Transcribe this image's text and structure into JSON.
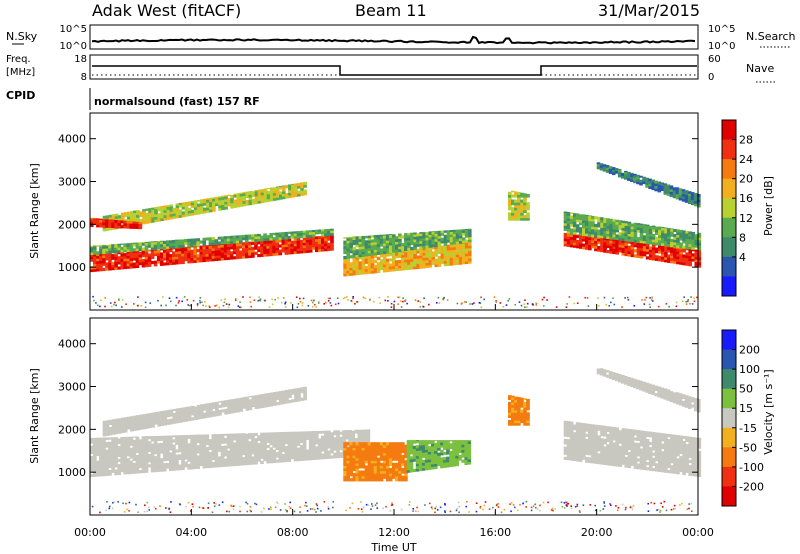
{
  "header": {
    "station": "Adak West (fitACF)",
    "beam": "Beam 11",
    "date": "31/Mar/2015"
  },
  "top_panels": {
    "nsky_label": "N.Sky",
    "nsearch_label": "N.Search",
    "freq_label_1": "Freq.",
    "freq_label_2": "[MHz]",
    "nave_label": "Nave",
    "cpid_label": "CPID",
    "cpid_text": "normalsound (fast) 157 RF",
    "noise_ticks_left": [
      "10^5",
      "10^0"
    ],
    "noise_ticks_right": [
      "10^5",
      "10^0"
    ],
    "freq_ticks": [
      "18",
      "8"
    ],
    "nave_ticks": [
      "60",
      "0"
    ]
  },
  "colors": {
    "power_scale": [
      "#1a1aff",
      "#2a55b0",
      "#3f8a6a",
      "#5aaa50",
      "#b8d030",
      "#f2b020",
      "#f57a10",
      "#f03010",
      "#e00000"
    ],
    "velocity_scale": [
      "#1a1aff",
      "#2a55b0",
      "#3f8a6a",
      "#7cc040",
      "#c8c8c0",
      "#f2b020",
      "#f57a10",
      "#f03010",
      "#e00000"
    ]
  },
  "chart_data": [
    {
      "type": "heatmap",
      "name": "power",
      "xlabel": "",
      "ylabel": "Slant Range [km]",
      "y_ticks": [
        1000,
        2000,
        3000,
        4000
      ],
      "ylim": [
        0,
        4600
      ],
      "x_ticks": [
        "00:00",
        "04:00",
        "08:00",
        "12:00",
        "16:00",
        "20:00",
        "00:00"
      ],
      "xlim_hours": [
        0,
        24
      ],
      "colorbar_label": "Power [dB]",
      "colorbar_ticks": [
        "28",
        "24",
        "20",
        "16",
        "12",
        "8",
        "4"
      ],
      "bands": [
        {
          "t0": 0.0,
          "t1": 9.5,
          "r0": 900,
          "r1": 1300,
          "r0_end": 1400,
          "r1_end": 1750,
          "level": 28
        },
        {
          "t0": 0.0,
          "t1": 9.5,
          "r0": 1300,
          "r1": 1500,
          "r0_end": 1750,
          "r1_end": 1900,
          "level": 12
        },
        {
          "t0": 0.5,
          "t1": 8.5,
          "r0": 1850,
          "r1": 2200,
          "r0_end": 2700,
          "r1_end": 3000,
          "level": 16
        },
        {
          "t0": 0.0,
          "t1": 2.0,
          "r0": 1950,
          "r1": 2150,
          "r0_end": 1900,
          "r1_end": 2050,
          "level": 28
        },
        {
          "t0": 10.0,
          "t1": 15.0,
          "r0": 800,
          "r1": 1200,
          "r0_end": 1100,
          "r1_end": 1600,
          "level": 20
        },
        {
          "t0": 10.0,
          "t1": 15.0,
          "r0": 1200,
          "r1": 1700,
          "r0_end": 1600,
          "r1_end": 1900,
          "level": 12
        },
        {
          "t0": 16.5,
          "t1": 17.3,
          "r0": 2100,
          "r1": 2800,
          "r0_end": 2100,
          "r1_end": 2700,
          "level": 16
        },
        {
          "t0": 18.7,
          "t1": 24.0,
          "r0": 1500,
          "r1": 1800,
          "r0_end": 1000,
          "r1_end": 1400,
          "level": 28
        },
        {
          "t0": 18.7,
          "t1": 24.0,
          "r0": 1800,
          "r1": 2300,
          "r0_end": 1400,
          "r1_end": 1800,
          "level": 12
        },
        {
          "t0": 20.0,
          "t1": 24.0,
          "r0": 3300,
          "r1": 3450,
          "r0_end": 2400,
          "r1_end": 2700,
          "level": 8
        }
      ]
    },
    {
      "type": "heatmap",
      "name": "velocity",
      "xlabel": "Time UT",
      "ylabel": "Slant Range [km]",
      "y_ticks": [
        1000,
        2000,
        3000,
        4000
      ],
      "ylim": [
        0,
        4600
      ],
      "x_ticks": [
        "00:00",
        "04:00",
        "08:00",
        "12:00",
        "16:00",
        "20:00",
        "00:00"
      ],
      "xlim_hours": [
        0,
        24
      ],
      "colorbar_label": "Velocity [m s⁻¹]",
      "colorbar_ticks": [
        "200",
        "100",
        "50",
        "15",
        "-15",
        "-50",
        "-100",
        "-200"
      ],
      "bands": [
        {
          "t0": 0.0,
          "t1": 11.0,
          "r0": 900,
          "r1": 1800,
          "r0_end": 1400,
          "r1_end": 2000,
          "level": 0
        },
        {
          "t0": 0.5,
          "t1": 8.5,
          "r0": 1850,
          "r1": 2200,
          "r0_end": 2700,
          "r1_end": 3000,
          "level": 0
        },
        {
          "t0": 10.0,
          "t1": 12.5,
          "r0": 800,
          "r1": 1700,
          "r0_end": 800,
          "r1_end": 1700,
          "level": -60
        },
        {
          "t0": 12.5,
          "t1": 15.0,
          "r0": 1000,
          "r1": 1750,
          "r0_end": 1200,
          "r1_end": 1750,
          "level": 40
        },
        {
          "t0": 16.5,
          "t1": 17.3,
          "r0": 2100,
          "r1": 2800,
          "r0_end": 2100,
          "r1_end": 2700,
          "level": -60
        },
        {
          "t0": 18.7,
          "t1": 24.0,
          "r0": 1300,
          "r1": 2200,
          "r0_end": 900,
          "r1_end": 1800,
          "level": 0
        },
        {
          "t0": 20.0,
          "t1": 24.0,
          "r0": 3300,
          "r1": 3450,
          "r0_end": 2400,
          "r1_end": 2700,
          "level": 0
        }
      ]
    }
  ]
}
